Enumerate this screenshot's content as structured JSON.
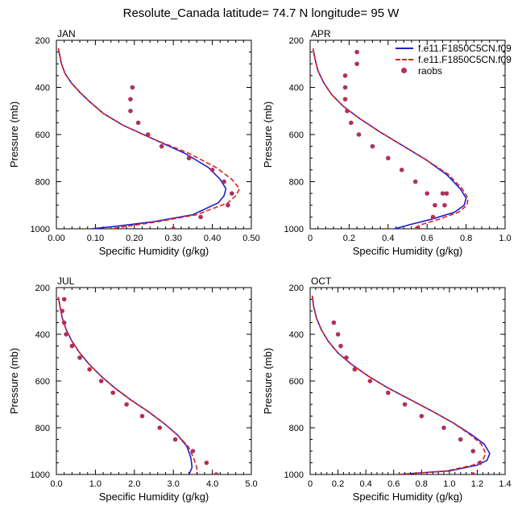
{
  "title": "Resolute_Canada  latitude= 74.7 N longitude= 95 W",
  "colors": {
    "series1": "#1f1fd1",
    "series2": "#e0201b",
    "obs": "#b0305a"
  },
  "legend": {
    "placement": "top-right",
    "entries": [
      {
        "label": "f.e11.F1850C5CN.f09",
        "style": "solid",
        "color": "#1f1fd1"
      },
      {
        "label": "f.e11.F1850C5CN.f09",
        "style": "dashed",
        "color": "#e0201b"
      },
      {
        "label": "raobs",
        "style": "marker",
        "color": "#b0305a"
      }
    ]
  },
  "chart_data": [
    {
      "type": "line",
      "panel_label": "JAN",
      "xlabel": "Specific Humidity (g/kg)",
      "ylabel": "Pressure (mb)",
      "xlim": [
        0,
        0.5
      ],
      "ylim": [
        200,
        1000
      ],
      "y_inverted": true,
      "xticks": [
        "0.00",
        "0.10",
        "0.20",
        "0.30",
        "0.40",
        "0.50"
      ],
      "xtick_values": [
        0,
        0.1,
        0.2,
        0.3,
        0.4,
        0.5
      ],
      "yticks": [
        "200",
        "400",
        "600",
        "800",
        "1000"
      ],
      "ytick_values": [
        200,
        400,
        600,
        800,
        1000
      ],
      "series": [
        {
          "kind": "model1",
          "x": [
            0.005,
            0.008,
            0.013,
            0.022,
            0.038,
            0.06,
            0.085,
            0.12,
            0.17,
            0.25,
            0.33,
            0.39,
            0.42,
            0.435,
            0.43,
            0.415,
            0.35,
            0.25,
            0.15,
            0.09
          ],
          "y": [
            235,
            260,
            300,
            340,
            380,
            420,
            460,
            510,
            560,
            620,
            680,
            740,
            790,
            830,
            860,
            890,
            940,
            970,
            990,
            1000
          ]
        },
        {
          "kind": "model2",
          "x": [
            0.005,
            0.008,
            0.013,
            0.022,
            0.038,
            0.06,
            0.085,
            0.12,
            0.17,
            0.25,
            0.34,
            0.41,
            0.45,
            0.47,
            0.46,
            0.44,
            0.36,
            0.26,
            0.18,
            0.14
          ],
          "y": [
            235,
            260,
            300,
            340,
            380,
            420,
            460,
            510,
            560,
            620,
            680,
            740,
            790,
            830,
            860,
            890,
            940,
            970,
            990,
            1000
          ]
        },
        {
          "kind": "obs",
          "x": [
            0.195,
            0.19,
            0.19,
            0.21,
            0.235,
            0.27,
            0.34,
            0.4,
            0.43,
            0.45,
            0.44,
            0.37,
            0.3
          ],
          "y": [
            400,
            450,
            500,
            550,
            600,
            650,
            700,
            750,
            800,
            850,
            900,
            950,
            1000
          ]
        }
      ]
    },
    {
      "type": "line",
      "panel_label": "APR",
      "xlabel": "Specific Humidity (g/kg)",
      "ylabel": "Pressure (mb)",
      "xlim": [
        0,
        1.0
      ],
      "ylim": [
        200,
        1000
      ],
      "y_inverted": true,
      "xticks": [
        "0",
        "0.2",
        "0.4",
        "0.6",
        "0.8",
        "1.0"
      ],
      "xtick_values": [
        0,
        0.2,
        0.4,
        0.6,
        0.8,
        1.0
      ],
      "yticks": [
        "200",
        "400",
        "600",
        "800",
        "1000"
      ],
      "ytick_values": [
        200,
        400,
        600,
        800,
        1000
      ],
      "series": [
        {
          "kind": "model1",
          "x": [
            0.015,
            0.025,
            0.04,
            0.07,
            0.11,
            0.17,
            0.25,
            0.36,
            0.48,
            0.6,
            0.7,
            0.77,
            0.8,
            0.79,
            0.74,
            0.62,
            0.5,
            0.41
          ],
          "y": [
            235,
            280,
            330,
            380,
            430,
            480,
            530,
            590,
            650,
            710,
            770,
            830,
            870,
            900,
            930,
            960,
            985,
            1005
          ]
        },
        {
          "kind": "model2",
          "x": [
            0.015,
            0.025,
            0.04,
            0.07,
            0.11,
            0.17,
            0.25,
            0.36,
            0.48,
            0.6,
            0.71,
            0.78,
            0.81,
            0.805,
            0.76,
            0.66,
            0.56,
            0.52
          ],
          "y": [
            235,
            280,
            330,
            380,
            430,
            480,
            530,
            590,
            650,
            710,
            770,
            830,
            870,
            900,
            930,
            960,
            985,
            1005
          ]
        },
        {
          "kind": "obs",
          "x": [
            0.24,
            0.24,
            0.18,
            0.18,
            0.18,
            0.19,
            0.21,
            0.25,
            0.32,
            0.4,
            0.47,
            0.54,
            0.6,
            0.64,
            0.68,
            0.69,
            0.7,
            0.63,
            0.55
          ],
          "y": [
            250,
            300,
            350,
            400,
            450,
            500,
            550,
            600,
            650,
            700,
            750,
            800,
            850,
            900,
            850,
            900,
            850,
            950,
            1000
          ]
        }
      ]
    },
    {
      "type": "line",
      "panel_label": "JUL",
      "xlabel": "Specific Humidity (g/kg)",
      "ylabel": "Pressure (mb)",
      "xlim": [
        0,
        5.0
      ],
      "ylim": [
        200,
        1000
      ],
      "y_inverted": true,
      "xticks": [
        "0.0",
        "1.0",
        "2.0",
        "3.0",
        "4.0",
        "5.0"
      ],
      "xtick_values": [
        0,
        1,
        2,
        3,
        4,
        5
      ],
      "yticks": [
        "200",
        "400",
        "600",
        "800",
        "1000"
      ],
      "ytick_values": [
        200,
        400,
        600,
        800,
        1000
      ],
      "series": [
        {
          "kind": "model1",
          "x": [
            0.05,
            0.09,
            0.15,
            0.25,
            0.4,
            0.6,
            0.85,
            1.15,
            1.5,
            1.9,
            2.35,
            2.75,
            3.1,
            3.35,
            3.45,
            3.48,
            3.4
          ],
          "y": [
            240,
            280,
            330,
            380,
            430,
            480,
            530,
            580,
            630,
            680,
            730,
            780,
            830,
            880,
            930,
            970,
            1000
          ]
        },
        {
          "kind": "model2",
          "x": [
            0.05,
            0.09,
            0.15,
            0.25,
            0.4,
            0.6,
            0.85,
            1.15,
            1.5,
            1.9,
            2.35,
            2.75,
            3.1,
            3.38,
            3.52,
            3.6,
            3.62
          ],
          "y": [
            240,
            280,
            330,
            380,
            430,
            480,
            530,
            580,
            630,
            680,
            730,
            780,
            830,
            880,
            930,
            970,
            1000
          ]
        },
        {
          "kind": "obs",
          "x": [
            0.2,
            0.15,
            0.2,
            0.25,
            0.4,
            0.6,
            0.85,
            1.15,
            1.45,
            1.8,
            2.2,
            2.65,
            3.05,
            3.5,
            3.85,
            4.1
          ],
          "y": [
            250,
            300,
            350,
            400,
            450,
            500,
            550,
            600,
            650,
            700,
            750,
            800,
            850,
            900,
            950,
            1000
          ]
        }
      ]
    },
    {
      "type": "line",
      "panel_label": "OCT",
      "xlabel": "Specific Humidity (g/kg)",
      "ylabel": "Pressure (mb)",
      "xlim": [
        0,
        1.4
      ],
      "ylim": [
        200,
        1000
      ],
      "y_inverted": true,
      "xticks": [
        "0",
        "0.2",
        "0.4",
        "0.6",
        "0.8",
        "1.0",
        "1.2",
        "1.4"
      ],
      "xtick_values": [
        0,
        0.2,
        0.4,
        0.6,
        0.8,
        1.0,
        1.2,
        1.4
      ],
      "yticks": [
        "200",
        "400",
        "600",
        "800",
        "1000"
      ],
      "ytick_values": [
        200,
        400,
        600,
        800,
        1000
      ],
      "series": [
        {
          "kind": "model1",
          "x": [
            0.015,
            0.025,
            0.045,
            0.08,
            0.13,
            0.2,
            0.3,
            0.42,
            0.56,
            0.72,
            0.88,
            1.03,
            1.16,
            1.25,
            1.29,
            1.27,
            1.2,
            1.0,
            0.75,
            0.63
          ],
          "y": [
            235,
            280,
            330,
            380,
            430,
            480,
            530,
            580,
            630,
            680,
            730,
            780,
            830,
            870,
            910,
            940,
            960,
            985,
            995,
            1000
          ]
        },
        {
          "kind": "model2",
          "x": [
            0.015,
            0.025,
            0.045,
            0.08,
            0.13,
            0.2,
            0.3,
            0.42,
            0.56,
            0.72,
            0.88,
            1.03,
            1.15,
            1.23,
            1.26,
            1.24,
            1.17,
            0.98,
            0.75,
            0.63
          ],
          "y": [
            235,
            280,
            330,
            380,
            430,
            480,
            530,
            580,
            630,
            680,
            730,
            780,
            830,
            870,
            910,
            940,
            960,
            985,
            995,
            1000
          ]
        },
        {
          "kind": "obs",
          "x": [
            0.17,
            0.2,
            0.22,
            0.26,
            0.32,
            0.43,
            0.56,
            0.68,
            0.8,
            0.96,
            1.08,
            1.17,
            1.22,
            1.17
          ],
          "y": [
            350,
            400,
            450,
            500,
            550,
            600,
            650,
            700,
            750,
            800,
            850,
            900,
            950,
            1000
          ]
        }
      ]
    }
  ]
}
